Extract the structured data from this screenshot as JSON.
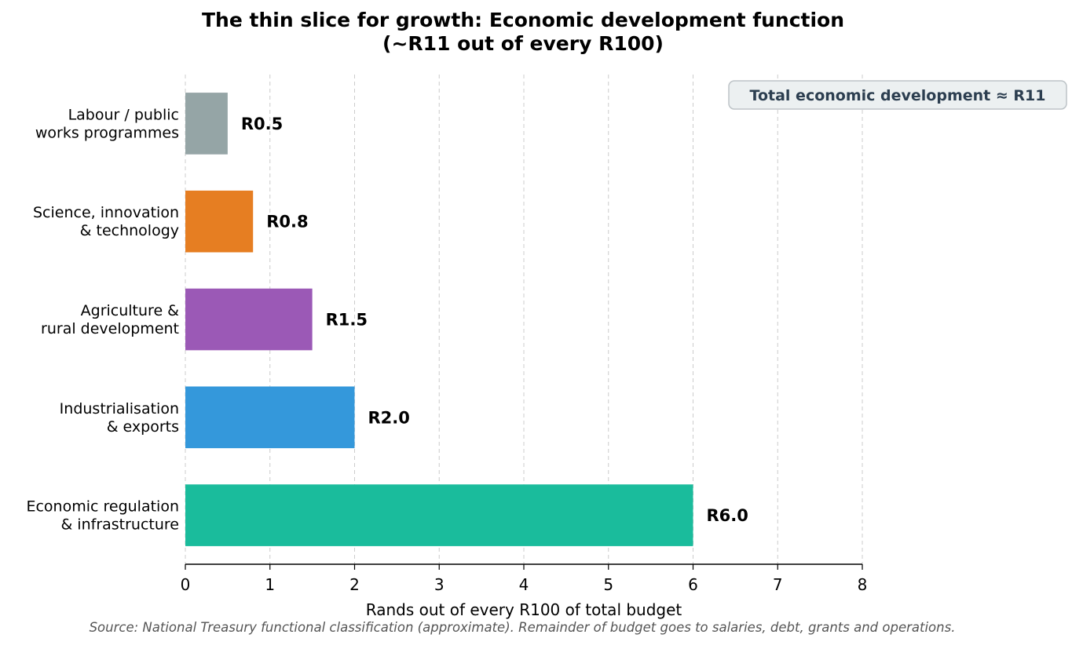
{
  "chart_data": {
    "type": "bar",
    "orientation": "horizontal",
    "title": "The thin slice for growth: Economic development function",
    "subtitle": "(~R11 out of every R100)",
    "xlabel": "Rands out of every R100 of total budget",
    "ylabel": "",
    "xlim": [
      0,
      8
    ],
    "xticks": [
      "0",
      "1",
      "2",
      "3",
      "4",
      "5",
      "6",
      "7",
      "8"
    ],
    "grid": "x-dashed",
    "categories": [
      [
        "Labour / public",
        "works programmes"
      ],
      [
        "Science, innovation",
        "& technology"
      ],
      [
        "Agriculture &",
        "rural development"
      ],
      [
        "Industrialisation",
        "& exports"
      ],
      [
        "Economic regulation",
        "& infrastructure"
      ]
    ],
    "values": [
      0.5,
      0.8,
      1.5,
      2.0,
      6.0
    ],
    "data_labels": [
      "R0.5",
      "R0.8",
      "R1.5",
      "R2.0",
      "R6.0"
    ],
    "colors": [
      "#95a5a6",
      "#e67e22",
      "#9b59b6",
      "#3498db",
      "#1abc9c"
    ],
    "annotation": "Total economic development ≈ R11",
    "source": "Source: National Treasury functional classification (approximate). Remainder of budget goes to salaries, debt, grants and operations."
  }
}
